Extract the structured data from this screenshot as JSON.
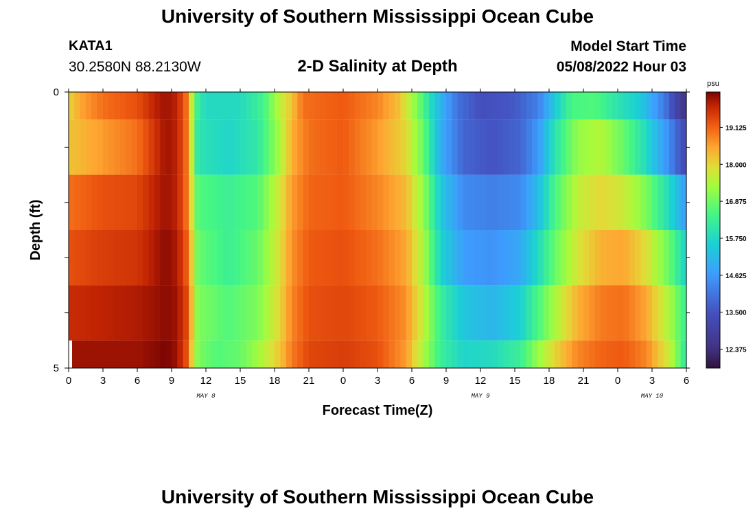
{
  "header": {
    "title": "University of Southern Mississippi Ocean Cube",
    "station_id": "KATA1",
    "coordinates": "30.2580N  88.2130W",
    "plot_title": "2-D Salinity at Depth",
    "start_time_label": "Model Start Time",
    "start_time_value": "05/08/2022 Hour 03"
  },
  "footer": {
    "title": "University of Southern Mississippi Ocean Cube"
  },
  "chart_data": {
    "type": "heatmap",
    "xlabel": "Forecast Time(Z)",
    "ylabel": "Depth (ft)",
    "x_range_hours": [
      0,
      54
    ],
    "y_range": [
      0,
      5
    ],
    "y_tick_labels": [
      "0",
      "5"
    ],
    "x_tick_labels": [
      "0",
      "3",
      "6",
      "9",
      "12",
      "15",
      "18",
      "21",
      "0",
      "3",
      "6",
      "9",
      "12",
      "15",
      "18",
      "21",
      "0",
      "3",
      "6"
    ],
    "date_labels": [
      {
        "text": "MAY 8",
        "at_hour": 12
      },
      {
        "text": "MAY 9",
        "at_hour": 36
      },
      {
        "text": "MAY 10",
        "at_hour": 51
      }
    ],
    "colorbar": {
      "unit": "psu",
      "min": 11.8,
      "max": 20.2,
      "tick_values": [
        12.375,
        13.5,
        14.625,
        15.75,
        16.875,
        18.0,
        19.125
      ],
      "tick_labels": [
        "12.375",
        "13.500",
        "14.625",
        "15.750",
        "16.875",
        "18.000",
        "19.125"
      ]
    },
    "depth_layers": [
      {
        "top": 0,
        "bottom": 0.5,
        "keyframes": [
          [
            0,
            18.0
          ],
          [
            1,
            18.5
          ],
          [
            3,
            19.0
          ],
          [
            6,
            19.3
          ],
          [
            7.5,
            19.8
          ],
          [
            8.5,
            20.0
          ],
          [
            9.5,
            19.8
          ],
          [
            10.3,
            19.0
          ],
          [
            10.8,
            17.5
          ],
          [
            11.3,
            16.2
          ],
          [
            12,
            15.8
          ],
          [
            15,
            15.8
          ],
          [
            17,
            16.4
          ],
          [
            18.5,
            17.6
          ],
          [
            19.5,
            18.2
          ],
          [
            20.5,
            19.0
          ],
          [
            24,
            19.2
          ],
          [
            27,
            18.8
          ],
          [
            29,
            18.2
          ],
          [
            30.5,
            17.0
          ],
          [
            32,
            15.5
          ],
          [
            34,
            14.0
          ],
          [
            36,
            13.4
          ],
          [
            39,
            13.6
          ],
          [
            41,
            14.2
          ],
          [
            42.5,
            15.5
          ],
          [
            44,
            16.5
          ],
          [
            46,
            16.6
          ],
          [
            48,
            16.0
          ],
          [
            50,
            15.5
          ],
          [
            52,
            14.2
          ],
          [
            53,
            13.2
          ],
          [
            54,
            12.4
          ]
        ]
      },
      {
        "top": 0.5,
        "bottom": 1.5,
        "keyframes": [
          [
            0,
            18.2
          ],
          [
            3,
            18.6
          ],
          [
            6,
            19.0
          ],
          [
            7.5,
            19.6
          ],
          [
            8.5,
            20.0
          ],
          [
            9.5,
            19.8
          ],
          [
            10.3,
            19.0
          ],
          [
            10.8,
            17.5
          ],
          [
            11.3,
            16.0
          ],
          [
            14,
            15.7
          ],
          [
            16.5,
            16.1
          ],
          [
            18.5,
            17.4
          ],
          [
            19.5,
            18.4
          ],
          [
            21,
            19.0
          ],
          [
            24,
            19.2
          ],
          [
            27,
            18.6
          ],
          [
            29.5,
            18.0
          ],
          [
            31,
            16.8
          ],
          [
            32.5,
            15.0
          ],
          [
            34.5,
            13.8
          ],
          [
            37,
            13.5
          ],
          [
            39.5,
            13.8
          ],
          [
            41,
            14.6
          ],
          [
            42.5,
            16.0
          ],
          [
            44.5,
            17.2
          ],
          [
            46.5,
            17.5
          ],
          [
            48.5,
            16.8
          ],
          [
            50.5,
            15.8
          ],
          [
            52.5,
            14.4
          ],
          [
            53.5,
            13.5
          ],
          [
            54,
            13.2
          ]
        ]
      },
      {
        "top": 1.5,
        "bottom": 2.5,
        "keyframes": [
          [
            0,
            19.0
          ],
          [
            3,
            19.3
          ],
          [
            6,
            19.4
          ],
          [
            7.5,
            19.8
          ],
          [
            8.5,
            20.0
          ],
          [
            9.5,
            19.8
          ],
          [
            10.3,
            19.0
          ],
          [
            10.8,
            17.8
          ],
          [
            11.3,
            16.6
          ],
          [
            14,
            16.3
          ],
          [
            16.5,
            16.6
          ],
          [
            18.5,
            17.8
          ],
          [
            19.5,
            18.6
          ],
          [
            21,
            19.1
          ],
          [
            24,
            19.2
          ],
          [
            27,
            18.8
          ],
          [
            29.5,
            18.3
          ],
          [
            31,
            17.2
          ],
          [
            32.5,
            15.5
          ],
          [
            34.5,
            14.4
          ],
          [
            37,
            14.2
          ],
          [
            39.5,
            14.4
          ],
          [
            41,
            15.2
          ],
          [
            42.5,
            16.5
          ],
          [
            44.5,
            17.6
          ],
          [
            46.5,
            18.0
          ],
          [
            48.5,
            17.7
          ],
          [
            50.5,
            17.0
          ],
          [
            52.5,
            15.8
          ],
          [
            53.5,
            15.0
          ],
          [
            54,
            14.6
          ]
        ]
      },
      {
        "top": 2.5,
        "bottom": 3.5,
        "keyframes": [
          [
            0,
            19.3
          ],
          [
            3,
            19.5
          ],
          [
            6,
            19.6
          ],
          [
            7.5,
            19.9
          ],
          [
            8.5,
            20.1
          ],
          [
            9.5,
            19.9
          ],
          [
            10.3,
            19.2
          ],
          [
            10.8,
            18.0
          ],
          [
            11.3,
            16.8
          ],
          [
            14,
            16.3
          ],
          [
            16.5,
            16.8
          ],
          [
            18.5,
            17.9
          ],
          [
            19.5,
            18.7
          ],
          [
            21,
            19.2
          ],
          [
            24,
            19.3
          ],
          [
            27,
            19.0
          ],
          [
            29.5,
            18.5
          ],
          [
            31,
            17.4
          ],
          [
            32.5,
            15.7
          ],
          [
            34.5,
            14.7
          ],
          [
            37,
            14.5
          ],
          [
            39.5,
            14.9
          ],
          [
            41,
            15.8
          ],
          [
            42.5,
            16.8
          ],
          [
            44.5,
            17.8
          ],
          [
            46.5,
            18.4
          ],
          [
            48.5,
            18.5
          ],
          [
            50.5,
            17.9
          ],
          [
            52.5,
            16.8
          ],
          [
            53.5,
            16.0
          ],
          [
            54,
            15.6
          ]
        ]
      },
      {
        "top": 3.5,
        "bottom": 4.5,
        "keyframes": [
          [
            0,
            19.7
          ],
          [
            3,
            19.8
          ],
          [
            6,
            19.9
          ],
          [
            7.5,
            20.0
          ],
          [
            8.5,
            20.1
          ],
          [
            9.5,
            20.0
          ],
          [
            10.3,
            19.4
          ],
          [
            10.8,
            18.2
          ],
          [
            11.3,
            17.0
          ],
          [
            14,
            16.6
          ],
          [
            16.5,
            17.0
          ],
          [
            18.5,
            18.0
          ],
          [
            19.5,
            18.8
          ],
          [
            21,
            19.3
          ],
          [
            24,
            19.4
          ],
          [
            27,
            19.2
          ],
          [
            29.5,
            18.7
          ],
          [
            31,
            17.6
          ],
          [
            32.5,
            16.3
          ],
          [
            34.5,
            15.4
          ],
          [
            37,
            15.1
          ],
          [
            39.5,
            15.6
          ],
          [
            41,
            16.5
          ],
          [
            42.5,
            17.4
          ],
          [
            44.5,
            18.4
          ],
          [
            46.5,
            18.9
          ],
          [
            48.5,
            19.0
          ],
          [
            50.5,
            18.5
          ],
          [
            52.5,
            17.4
          ],
          [
            53.5,
            16.6
          ],
          [
            54,
            16.3
          ]
        ]
      },
      {
        "top": 4.5,
        "bottom": 5.0,
        "keyframes": [
          [
            0.3,
            20.0
          ],
          [
            3,
            20.0
          ],
          [
            6,
            20.0
          ],
          [
            7.5,
            20.1
          ],
          [
            8.5,
            20.2
          ],
          [
            9.5,
            20.0
          ],
          [
            10.3,
            19.3
          ],
          [
            10.8,
            18.0
          ],
          [
            11.3,
            17.0
          ],
          [
            13,
            16.6
          ],
          [
            15,
            16.8
          ],
          [
            16.5,
            17.3
          ],
          [
            18.5,
            18.2
          ],
          [
            19.5,
            18.9
          ],
          [
            21,
            19.4
          ],
          [
            24,
            19.5
          ],
          [
            27,
            19.3
          ],
          [
            29.5,
            18.6
          ],
          [
            31,
            17.4
          ],
          [
            32.5,
            16.3
          ],
          [
            34.5,
            15.7
          ],
          [
            37,
            15.8
          ],
          [
            39.5,
            16.3
          ],
          [
            41,
            17.2
          ],
          [
            42.5,
            18.0
          ],
          [
            44.5,
            18.8
          ],
          [
            46.5,
            19.1
          ],
          [
            48.5,
            19.2
          ],
          [
            50.5,
            18.8
          ],
          [
            52.5,
            17.7
          ],
          [
            53.5,
            16.6
          ],
          [
            54,
            16.0
          ]
        ]
      }
    ]
  }
}
